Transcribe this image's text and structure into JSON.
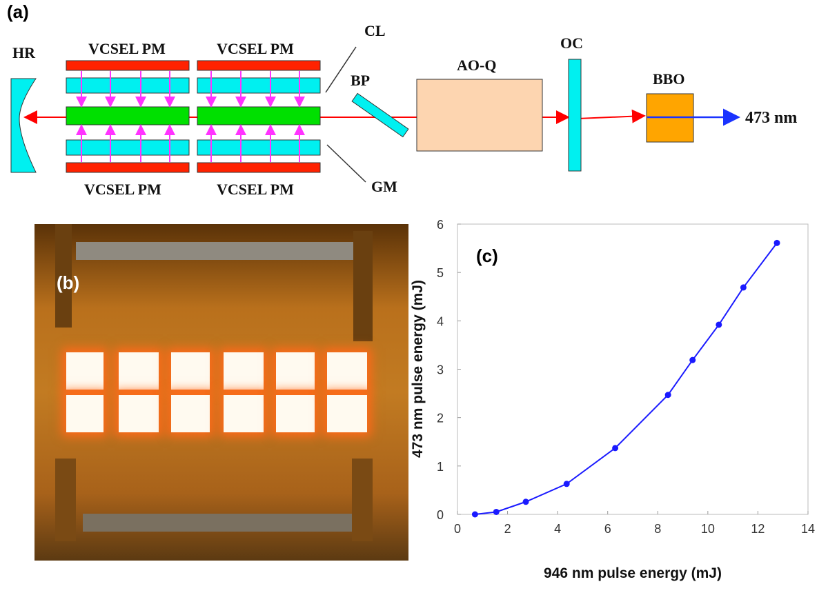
{
  "panel_a": {
    "label": "(a)",
    "components": {
      "hr": "HR",
      "vcsel_top_1": "VCSEL PM",
      "vcsel_top_2": "VCSEL PM",
      "vcsel_bottom_1": "VCSEL PM",
      "vcsel_bottom_2": "VCSEL PM",
      "cl": "CL",
      "gm": "GM",
      "bp": "BP",
      "aoq": "AO-Q",
      "oc": "OC",
      "bbo": "BBO",
      "output": "473 nm"
    },
    "colors": {
      "pump_module": "#ff2200",
      "cooling_lens": "#00f0f0",
      "gain_medium": "#00e000",
      "pump_arrows": "#ff33ff",
      "ir_beam": "#ff0000",
      "blue_beam": "#1a33ff",
      "aoq": "#fdd5b0",
      "bbo": "#ffa500"
    }
  },
  "panel_b": {
    "label": "(b)"
  },
  "chart_data": {
    "type": "line",
    "label": "(c)",
    "xlabel": "946 nm pulse energy (mJ)",
    "ylabel": "473 nm pulse energy (mJ)",
    "xlim": [
      0,
      14
    ],
    "ylim": [
      0,
      6
    ],
    "xticks": [
      0,
      2,
      4,
      6,
      8,
      10,
      12,
      14
    ],
    "yticks": [
      0,
      1,
      2,
      3,
      4,
      5,
      6
    ],
    "grid": false,
    "color": "#1a1aff",
    "x": [
      0.7,
      1.55,
      2.73,
      4.36,
      6.3,
      8.41,
      9.39,
      10.44,
      11.42,
      12.76
    ],
    "y": [
      0.0,
      0.05,
      0.26,
      0.63,
      1.37,
      2.47,
      3.19,
      3.92,
      4.69,
      5.61
    ]
  }
}
